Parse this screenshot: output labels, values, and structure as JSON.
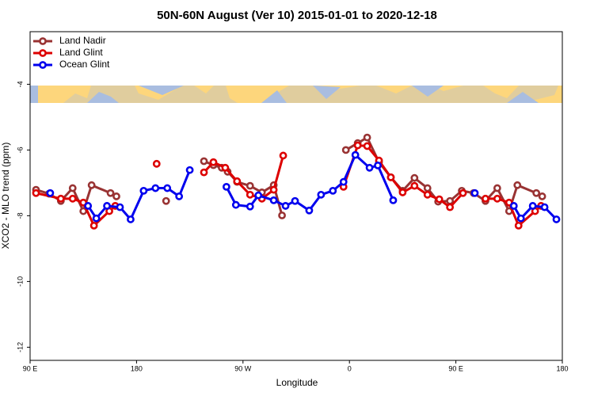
{
  "chart_data": {
    "type": "line",
    "title": "50N-60N August (Ver 10)   2015-01-01 to 2020-12-18",
    "xlabel": "Longitude",
    "ylabel": "XCO2 - MLO trend (ppm)",
    "xlim": [
      90,
      540
    ],
    "xticks": [
      {
        "value": 90,
        "label": "90 E"
      },
      180,
      {
        "value": 270,
        "label": "90 W"
      },
      {
        "value": 360,
        "label": "0"
      },
      {
        "value": 450,
        "label": "90 E"
      },
      {
        "value": 540,
        "label": "180"
      }
    ],
    "ylim": [
      -12.4,
      -2.4
    ],
    "yticks": [
      -4,
      -6,
      -8,
      -10,
      -12
    ],
    "legend": "top-left",
    "series": [
      {
        "name": "Land Nadir",
        "color": "#993333",
        "x": [
          95,
          106,
          116,
          126,
          135,
          142,
          158,
          163,
          184,
          205,
          220,
          237,
          245,
          252,
          257,
          265,
          276,
          286,
          296,
          303,
          330,
          357,
          367,
          375,
          385,
          395,
          405,
          415,
          426,
          435,
          445,
          455,
          465,
          475,
          485,
          495,
          502,
          518,
          523
        ],
        "values": [
          -7.21,
          -7.33,
          -7.55,
          -7.16,
          -7.86,
          -7.07,
          -7.31,
          -7.41,
          null,
          -7.55,
          null,
          -6.34,
          -6.46,
          -6.54,
          -6.66,
          -6.97,
          -7.09,
          -7.29,
          -7.07,
          -7.99,
          null,
          -6.0,
          -5.79,
          -5.62,
          -6.37,
          -6.83,
          -7.24,
          -6.85,
          -7.16,
          -7.57,
          -7.55,
          -7.24,
          -7.31,
          -7.55,
          -7.16,
          -7.86,
          -7.07,
          -7.31,
          -7.41
        ]
      },
      {
        "name": "Land Glint",
        "color": "#dd0000",
        "x": [
          95,
          116,
          126,
          135,
          144,
          157,
          162,
          180,
          197,
          220,
          237,
          245,
          255,
          265,
          276,
          286,
          296,
          304,
          330,
          355,
          367,
          375,
          385,
          395,
          405,
          415,
          426,
          436,
          445,
          456,
          465,
          475,
          485,
          495,
          503,
          517,
          522
        ],
        "values": [
          -7.31,
          -7.48,
          -7.48,
          -7.6,
          -8.3,
          -7.86,
          -7.7,
          null,
          -6.42,
          null,
          -6.68,
          -6.37,
          -6.54,
          -6.95,
          -7.36,
          -7.48,
          -7.21,
          -6.17,
          null,
          -7.12,
          -5.86,
          -5.88,
          -6.32,
          -6.83,
          -7.29,
          -7.09,
          -7.36,
          -7.5,
          -7.74,
          -7.31,
          null,
          -7.48,
          -7.48,
          -7.6,
          -8.3,
          -7.86,
          -7.7
        ]
      },
      {
        "name": "Ocean Glint",
        "color": "#0000ee",
        "x": [
          107,
          120,
          139,
          146,
          155,
          166,
          175,
          186,
          196,
          206,
          216,
          225,
          240,
          256,
          264,
          276,
          283,
          296,
          306,
          314,
          326,
          336,
          346,
          355,
          365,
          377,
          384,
          397,
          430,
          466,
          480,
          499,
          505,
          515,
          525,
          535
        ],
        "values": [
          -7.31,
          null,
          -7.7,
          -8.08,
          -7.7,
          -7.74,
          -8.11,
          -7.24,
          -7.16,
          -7.16,
          -7.41,
          -6.61,
          null,
          -7.12,
          -7.67,
          -7.72,
          -7.38,
          -7.53,
          -7.7,
          -7.55,
          -7.84,
          -7.36,
          -7.24,
          -6.97,
          -6.15,
          -6.54,
          -6.47,
          -7.53,
          null,
          -7.31,
          null,
          -7.7,
          -8.08,
          -7.7,
          -7.74,
          -8.11
        ]
      }
    ]
  }
}
